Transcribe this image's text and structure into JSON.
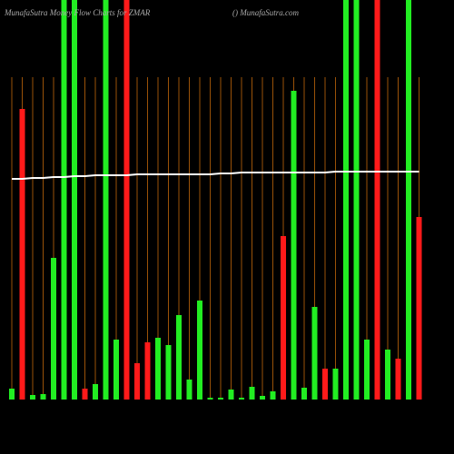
{
  "chart_data": {
    "type": "bar",
    "title": "MunafaSutra  Money Flow  Charts for ZMAR",
    "subtitle": "() MunafaSutra.com",
    "values": [
      12,
      320,
      5,
      6,
      156,
      460,
      460,
      12,
      17,
      460,
      66,
      460,
      40,
      63,
      68,
      60,
      93,
      22,
      109,
      2,
      2,
      11,
      2,
      14,
      4,
      9,
      180,
      340,
      13,
      102,
      34,
      34,
      460,
      460,
      66,
      460,
      55,
      45,
      460,
      201
    ],
    "colors": [
      "#22ee22",
      "#ff1a1a",
      "#22ee22",
      "#22ee22",
      "#22ee22",
      "#22ee22",
      "#22ee22",
      "#ff1a1a",
      "#22ee22",
      "#22ee22",
      "#22ee22",
      "#ff1a1a",
      "#ff1a1a",
      "#ff1a1a",
      "#22ee22",
      "#22ee22",
      "#22ee22",
      "#22ee22",
      "#22ee22",
      "#22ee22",
      "#22ee22",
      "#22ee22",
      "#22ee22",
      "#22ee22",
      "#22ee22",
      "#22ee22",
      "#ff1a1a",
      "#22ee22",
      "#22ee22",
      "#22ee22",
      "#ff1a1a",
      "#22ee22",
      "#22ee22",
      "#22ee22",
      "#22ee22",
      "#ff1a1a",
      "#22ee22",
      "#ff1a1a",
      "#22ee22",
      "#ff1a1a"
    ],
    "line_values": [
      243,
      243,
      244,
      244,
      245,
      245,
      246,
      246,
      247,
      247,
      247,
      247,
      248,
      248,
      248,
      248,
      248,
      248,
      248,
      248,
      249,
      249,
      250,
      250,
      250,
      250,
      250,
      250,
      250,
      250,
      250,
      251,
      251,
      251,
      251,
      251,
      251,
      251,
      251,
      251
    ],
    "line_color": "#ffffff",
    "ylim": [
      0,
      440
    ],
    "divider_color": "#9a5208"
  }
}
